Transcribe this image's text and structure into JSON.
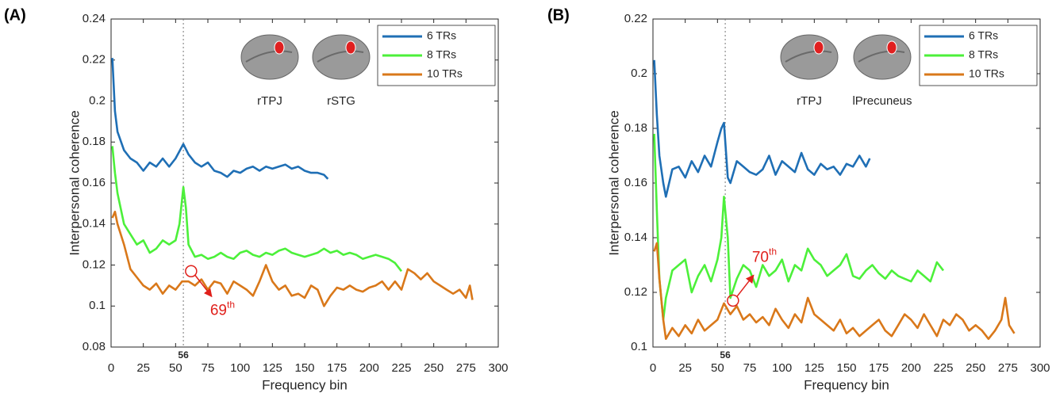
{
  "chart_data": [
    {
      "type": "line",
      "panel": "(A)",
      "xlabel": "Frequency bin",
      "ylabel": "Interpersonal coherence",
      "xlim": [
        0,
        300
      ],
      "xticks": [
        0,
        25,
        50,
        75,
        100,
        125,
        150,
        175,
        200,
        225,
        250,
        275,
        300
      ],
      "ylim": [
        0.08,
        0.24
      ],
      "yticks": [
        0.08,
        0.1,
        0.12,
        0.14,
        0.16,
        0.18,
        0.2,
        0.22,
        0.24
      ],
      "legend": "upper right",
      "vline": 56,
      "brain_labels": [
        "rTPJ",
        "rSTG"
      ],
      "annotation": {
        "text": "69",
        "superscript": "th",
        "x": 62,
        "y": 0.117
      },
      "series": [
        {
          "name": "6 TRs",
          "color": "#1f6fb5",
          "x": [
            1,
            3,
            5,
            10,
            15,
            20,
            25,
            30,
            35,
            40,
            45,
            50,
            56,
            60,
            65,
            70,
            75,
            80,
            85,
            90,
            95,
            100,
            105,
            110,
            115,
            120,
            125,
            130,
            135,
            140,
            145,
            150,
            155,
            160,
            165,
            168
          ],
          "values": [
            0.221,
            0.195,
            0.185,
            0.176,
            0.172,
            0.17,
            0.166,
            0.17,
            0.168,
            0.172,
            0.168,
            0.172,
            0.179,
            0.174,
            0.17,
            0.168,
            0.17,
            0.166,
            0.165,
            0.163,
            0.166,
            0.165,
            0.167,
            0.168,
            0.166,
            0.168,
            0.167,
            0.168,
            0.169,
            0.167,
            0.168,
            0.166,
            0.165,
            0.165,
            0.164,
            0.162
          ]
        },
        {
          "name": "8 TRs",
          "color": "#4cf03a",
          "x": [
            1,
            3,
            5,
            10,
            15,
            20,
            25,
            30,
            35,
            40,
            45,
            50,
            53,
            56,
            58,
            60,
            65,
            70,
            75,
            80,
            85,
            90,
            95,
            100,
            105,
            110,
            115,
            120,
            125,
            130,
            135,
            140,
            145,
            150,
            155,
            160,
            165,
            170,
            175,
            180,
            185,
            190,
            195,
            200,
            205,
            210,
            215,
            220,
            225
          ],
          "values": [
            0.178,
            0.165,
            0.155,
            0.14,
            0.135,
            0.13,
            0.132,
            0.126,
            0.128,
            0.132,
            0.13,
            0.132,
            0.14,
            0.158,
            0.148,
            0.13,
            0.124,
            0.125,
            0.123,
            0.124,
            0.126,
            0.124,
            0.123,
            0.126,
            0.127,
            0.125,
            0.124,
            0.126,
            0.125,
            0.127,
            0.128,
            0.126,
            0.125,
            0.124,
            0.125,
            0.126,
            0.128,
            0.126,
            0.127,
            0.125,
            0.126,
            0.125,
            0.123,
            0.124,
            0.125,
            0.124,
            0.123,
            0.121,
            0.117
          ]
        },
        {
          "name": "10 TRs",
          "color": "#d9781a",
          "x": [
            1,
            3,
            5,
            10,
            15,
            20,
            25,
            30,
            35,
            40,
            45,
            50,
            55,
            60,
            65,
            70,
            75,
            80,
            85,
            90,
            95,
            100,
            105,
            110,
            115,
            120,
            125,
            130,
            135,
            140,
            145,
            150,
            155,
            160,
            165,
            170,
            175,
            180,
            185,
            190,
            195,
            200,
            205,
            210,
            215,
            220,
            225,
            230,
            235,
            240,
            245,
            250,
            255,
            260,
            265,
            270,
            275,
            278,
            280
          ],
          "values": [
            0.143,
            0.146,
            0.14,
            0.13,
            0.118,
            0.114,
            0.11,
            0.108,
            0.111,
            0.106,
            0.11,
            0.108,
            0.112,
            0.112,
            0.11,
            0.113,
            0.108,
            0.112,
            0.111,
            0.106,
            0.112,
            0.11,
            0.108,
            0.105,
            0.112,
            0.12,
            0.112,
            0.108,
            0.11,
            0.105,
            0.106,
            0.104,
            0.11,
            0.108,
            0.1,
            0.105,
            0.109,
            0.108,
            0.11,
            0.108,
            0.107,
            0.109,
            0.11,
            0.112,
            0.108,
            0.112,
            0.108,
            0.118,
            0.116,
            0.113,
            0.116,
            0.112,
            0.11,
            0.108,
            0.106,
            0.108,
            0.104,
            0.11,
            0.103
          ]
        }
      ]
    },
    {
      "type": "line",
      "panel": "(B)",
      "xlabel": "Frequency bin",
      "ylabel": "Interpersonal coherence",
      "xlim": [
        0,
        300
      ],
      "xticks": [
        0,
        25,
        50,
        75,
        100,
        125,
        150,
        175,
        200,
        225,
        250,
        275,
        300
      ],
      "ylim": [
        0.1,
        0.22
      ],
      "yticks": [
        0.1,
        0.12,
        0.14,
        0.16,
        0.18,
        0.2,
        0.22
      ],
      "legend": "upper right",
      "vline": 56,
      "brain_labels": [
        "rTPJ",
        "lPrecuneus"
      ],
      "annotation": {
        "text": "70",
        "superscript": "th",
        "x": 62,
        "y": 0.117
      },
      "series": [
        {
          "name": "6 TRs",
          "color": "#1f6fb5",
          "x": [
            1,
            3,
            5,
            8,
            10,
            15,
            20,
            25,
            30,
            35,
            40,
            45,
            50,
            53,
            55,
            58,
            60,
            65,
            70,
            75,
            80,
            85,
            90,
            95,
            100,
            105,
            110,
            115,
            120,
            125,
            130,
            135,
            140,
            145,
            150,
            155,
            160,
            165,
            168
          ],
          "values": [
            0.205,
            0.185,
            0.17,
            0.16,
            0.155,
            0.165,
            0.166,
            0.162,
            0.168,
            0.164,
            0.17,
            0.166,
            0.175,
            0.18,
            0.182,
            0.162,
            0.16,
            0.168,
            0.166,
            0.164,
            0.163,
            0.165,
            0.17,
            0.163,
            0.168,
            0.166,
            0.164,
            0.171,
            0.165,
            0.163,
            0.167,
            0.165,
            0.166,
            0.163,
            0.167,
            0.166,
            0.17,
            0.166,
            0.169
          ]
        },
        {
          "name": "8 TRs",
          "color": "#4cf03a",
          "x": [
            1,
            3,
            5,
            8,
            10,
            15,
            20,
            25,
            30,
            35,
            40,
            45,
            50,
            53,
            55,
            58,
            60,
            65,
            70,
            75,
            80,
            85,
            90,
            95,
            100,
            105,
            110,
            115,
            120,
            125,
            130,
            135,
            140,
            145,
            150,
            155,
            160,
            165,
            170,
            175,
            180,
            185,
            190,
            195,
            200,
            205,
            210,
            215,
            220,
            225
          ],
          "values": [
            0.178,
            0.15,
            0.125,
            0.11,
            0.118,
            0.128,
            0.13,
            0.132,
            0.12,
            0.126,
            0.13,
            0.124,
            0.132,
            0.14,
            0.155,
            0.14,
            0.118,
            0.125,
            0.13,
            0.128,
            0.122,
            0.13,
            0.126,
            0.128,
            0.132,
            0.124,
            0.13,
            0.128,
            0.136,
            0.132,
            0.13,
            0.126,
            0.128,
            0.13,
            0.134,
            0.126,
            0.125,
            0.128,
            0.13,
            0.127,
            0.125,
            0.128,
            0.126,
            0.125,
            0.124,
            0.128,
            0.126,
            0.124,
            0.131,
            0.128
          ]
        },
        {
          "name": "10 TRs",
          "color": "#d9781a",
          "x": [
            1,
            3,
            5,
            8,
            10,
            15,
            20,
            25,
            30,
            35,
            40,
            45,
            50,
            55,
            60,
            65,
            70,
            75,
            80,
            85,
            90,
            95,
            100,
            105,
            110,
            115,
            120,
            125,
            130,
            135,
            140,
            145,
            150,
            155,
            160,
            165,
            170,
            175,
            180,
            185,
            190,
            195,
            200,
            205,
            210,
            215,
            220,
            225,
            230,
            235,
            240,
            245,
            250,
            255,
            260,
            265,
            270,
            273,
            276,
            280
          ],
          "values": [
            0.135,
            0.138,
            0.125,
            0.11,
            0.103,
            0.107,
            0.104,
            0.108,
            0.105,
            0.11,
            0.106,
            0.108,
            0.11,
            0.116,
            0.112,
            0.115,
            0.11,
            0.112,
            0.109,
            0.111,
            0.108,
            0.114,
            0.11,
            0.107,
            0.112,
            0.109,
            0.118,
            0.112,
            0.11,
            0.108,
            0.106,
            0.11,
            0.105,
            0.107,
            0.104,
            0.106,
            0.108,
            0.11,
            0.106,
            0.104,
            0.108,
            0.112,
            0.11,
            0.107,
            0.112,
            0.108,
            0.104,
            0.11,
            0.108,
            0.112,
            0.11,
            0.106,
            0.108,
            0.106,
            0.103,
            0.106,
            0.11,
            0.118,
            0.108,
            0.105
          ]
        }
      ]
    }
  ]
}
